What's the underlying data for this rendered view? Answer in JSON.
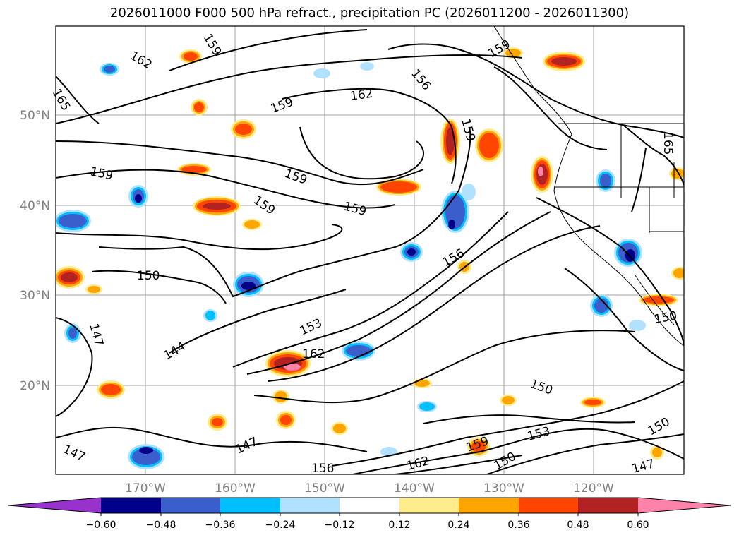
{
  "title": "2026011000 F000 500 hPa refract., precipitation PC (2026011200 - 2026011300)",
  "map": {
    "lat_labels": [
      "50°N",
      "40°N",
      "30°N",
      "20°N"
    ],
    "lon_labels": [
      "170°W",
      "160°W",
      "150°W",
      "140°W",
      "130°W",
      "120°W"
    ],
    "contour_labels": [
      "162",
      "159",
      "165",
      "162",
      "156",
      "159",
      "159",
      "159",
      "159",
      "159",
      "159",
      "150",
      "156",
      "153",
      "147",
      "144",
      "162",
      "150",
      "147",
      "156",
      "159",
      "153",
      "150",
      "162",
      "150",
      "147",
      "150",
      "159",
      "165",
      "147"
    ]
  },
  "colorbar": {
    "tick_labels": [
      "−0.60",
      "−0.48",
      "−0.36",
      "−0.24",
      "−0.12",
      "0.12",
      "0.24",
      "0.36",
      "0.48",
      "0.60"
    ],
    "colors": [
      "#9932cc",
      "#00008b",
      "#3a5fcd",
      "#00bfff",
      "#b0e2ff",
      "#ffffff",
      "#ffec8b",
      "#ffa500",
      "#ff4500",
      "#b22222",
      "#ff82ab"
    ]
  },
  "colors": {
    "contour": "#000000",
    "grid": "#a0a0a0",
    "coast": "#000000"
  }
}
